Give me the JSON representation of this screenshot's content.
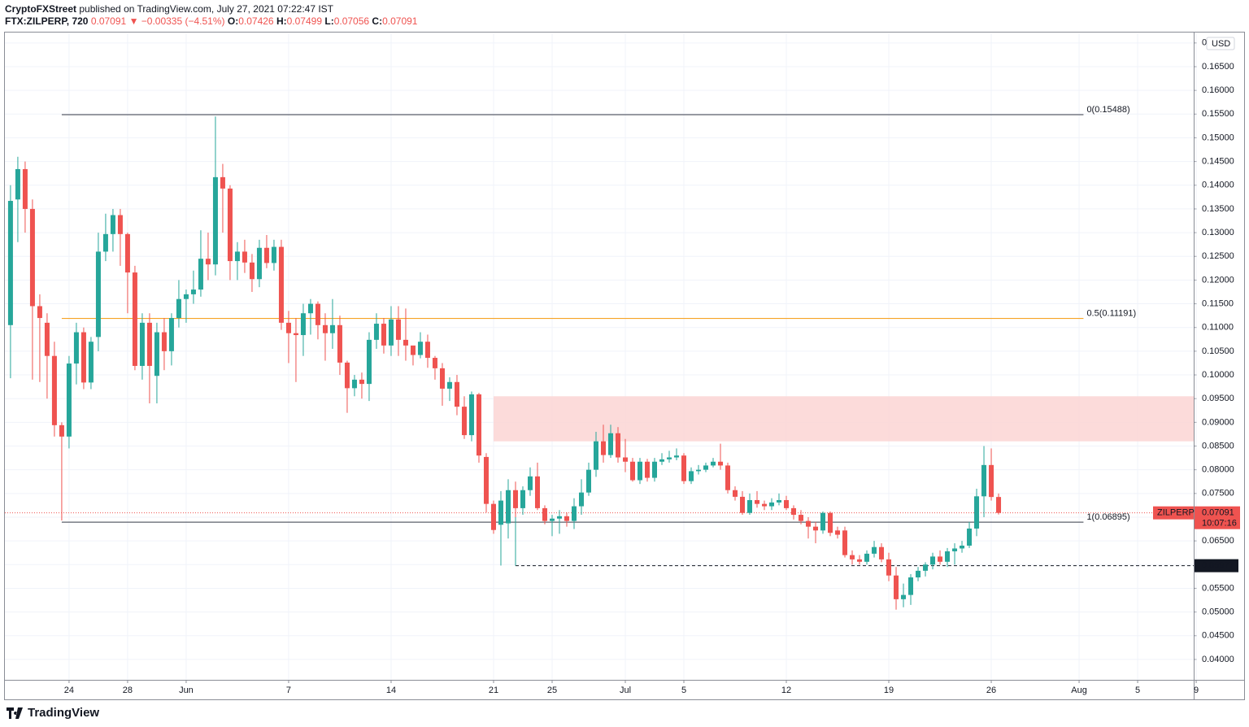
{
  "header": {
    "author": "CryptoFXStreet",
    "published": "published on TradingView.com, July 27, 2021 07:22:47 IST",
    "symbol": "FTX:ZILPERP, 720",
    "last": "0.07091",
    "change": "▼ −0.00335 (−4.51%)",
    "ohlc": [
      {
        "key": "O:",
        "value": "0.07426"
      },
      {
        "key": "H:",
        "value": "0.07499"
      },
      {
        "key": "L:",
        "value": "0.07056"
      },
      {
        "key": "C:",
        "value": "0.07091"
      }
    ]
  },
  "footer": {
    "brand": "TradingView"
  },
  "chart_data": {
    "type": "candlestick",
    "currency": "USD",
    "up_color": "#26a69a",
    "down_color": "#ef5350",
    "grid": true,
    "xlim": [
      19.56,
      100.83
    ],
    "ylim": [
      0.0357,
      0.1722
    ],
    "xticks": [
      {
        "value": 24,
        "label": "24"
      },
      {
        "value": 28,
        "label": "28"
      },
      {
        "value": 32,
        "label": "Jun"
      },
      {
        "value": 39,
        "label": "7"
      },
      {
        "value": 46,
        "label": "14"
      },
      {
        "value": 53,
        "label": "21"
      },
      {
        "value": 57,
        "label": "25"
      },
      {
        "value": 62,
        "label": "Jul"
      },
      {
        "value": 66,
        "label": "5"
      },
      {
        "value": 73,
        "label": "12"
      },
      {
        "value": 80,
        "label": "19"
      },
      {
        "value": 87,
        "label": "26"
      },
      {
        "value": 93,
        "label": "Aug"
      },
      {
        "value": 97,
        "label": "5"
      },
      {
        "value": 101,
        "label": "9"
      }
    ],
    "yticks": [
      {
        "value": 0.04,
        "label": "0.04000"
      },
      {
        "value": 0.045,
        "label": "0.04500"
      },
      {
        "value": 0.05,
        "label": "0.05000"
      },
      {
        "value": 0.055,
        "label": "0.05500"
      },
      {
        "value": 0.06,
        "label": "0.06000"
      },
      {
        "value": 0.065,
        "label": "0.06500"
      },
      {
        "value": 0.07,
        "label": "0.07000"
      },
      {
        "value": 0.075,
        "label": "0.07500"
      },
      {
        "value": 0.08,
        "label": "0.08000"
      },
      {
        "value": 0.085,
        "label": "0.08500"
      },
      {
        "value": 0.09,
        "label": "0.09000"
      },
      {
        "value": 0.095,
        "label": "0.09500"
      },
      {
        "value": 0.1,
        "label": "0.10000"
      },
      {
        "value": 0.105,
        "label": "0.10500"
      },
      {
        "value": 0.11,
        "label": "0.11000"
      },
      {
        "value": 0.115,
        "label": "0.11500"
      },
      {
        "value": 0.12,
        "label": "0.12000"
      },
      {
        "value": 0.125,
        "label": "0.12500"
      },
      {
        "value": 0.13,
        "label": "0.13000"
      },
      {
        "value": 0.135,
        "label": "0.13500"
      },
      {
        "value": 0.14,
        "label": "0.14000"
      },
      {
        "value": 0.145,
        "label": "0.14500"
      },
      {
        "value": 0.15,
        "label": "0.15000"
      },
      {
        "value": 0.155,
        "label": "0.15500"
      },
      {
        "value": 0.16,
        "label": "0.16000"
      },
      {
        "value": 0.165,
        "label": "0.16500"
      },
      {
        "value": 0.17,
        "label": "0.17000"
      }
    ],
    "x": [
      20,
      20.5,
      21,
      21.5,
      22,
      22.5,
      23,
      23.5,
      24,
      24.5,
      25,
      25.5,
      26,
      26.5,
      27,
      27.5,
      28,
      28.5,
      29,
      29.5,
      30,
      30.5,
      31,
      31.5,
      32,
      32.5,
      33,
      33.5,
      34,
      34.5,
      35,
      35.5,
      36,
      36.5,
      37,
      37.5,
      38,
      38.5,
      39,
      39.5,
      40,
      40.5,
      41,
      41.5,
      42,
      42.5,
      43,
      43.5,
      44,
      44.5,
      45,
      45.5,
      46,
      46.5,
      47,
      47.5,
      48,
      48.5,
      49,
      49.5,
      50,
      50.5,
      51,
      51.5,
      52,
      52.5,
      53,
      53.5,
      54,
      54.5,
      55,
      55.5,
      56,
      56.5,
      57,
      57.5,
      58,
      58.5,
      59,
      59.5,
      60,
      60.5,
      61,
      61.5,
      62,
      62.5,
      63,
      63.5,
      64,
      64.5,
      65,
      65.5,
      66,
      66.5,
      67,
      67.5,
      68,
      68.5,
      69,
      69.5,
      70,
      70.5,
      71,
      71.5,
      72,
      72.5,
      73,
      73.5,
      74,
      74.5,
      75,
      75.5,
      76,
      76.5,
      77,
      77.5,
      78,
      78.5,
      79,
      79.5,
      80,
      80.5,
      81,
      81.5,
      82,
      82.5,
      83,
      83.5,
      84,
      84.5,
      85,
      85.5,
      86,
      86.5,
      87,
      87.5
    ],
    "open": [
      0.1105,
      0.137,
      0.1434,
      0.135,
      0.1145,
      0.111,
      0.104,
      0.0894,
      0.087,
      0.1024,
      0.109,
      0.0984,
      0.108,
      0.126,
      0.1297,
      0.1337,
      0.1297,
      0.1216,
      0.1019,
      0.111,
      0.0998,
      0.109,
      0.105,
      0.112,
      0.116,
      0.117,
      0.118,
      0.1245,
      0.1233,
      0.1417,
      0.1393,
      0.124,
      0.126,
      0.1237,
      0.1202,
      0.1268,
      0.1236,
      0.127,
      0.111,
      0.1088,
      0.1084,
      0.113,
      0.115,
      0.1105,
      0.1088,
      0.1105,
      0.1026,
      0.0972,
      0.099,
      0.0981,
      0.1074,
      0.1108,
      0.1062,
      0.1117,
      0.1074,
      0.1062,
      0.1042,
      0.107,
      0.1036,
      0.1014,
      0.0971,
      0.0985,
      0.0933,
      0.0873,
      0.0959,
      0.0827,
      0.0728,
      0.0684,
      0.0687,
      0.0757,
      0.0719,
      0.0757,
      0.0786,
      0.0719,
      0.0692,
      0.0697,
      0.0702,
      0.0692,
      0.0723,
      0.0752,
      0.08,
      0.086,
      0.0831,
      0.0877,
      0.0826,
      0.0817,
      0.0778,
      0.0817,
      0.0783,
      0.0817,
      0.0822,
      0.0826,
      0.083,
      0.0776,
      0.0797,
      0.08,
      0.0809,
      0.0817,
      0.0809,
      0.0757,
      0.0743,
      0.0709,
      0.0736,
      0.0728,
      0.0723,
      0.0731,
      0.0736,
      0.0719,
      0.0705,
      0.0692,
      0.068,
      0.0672,
      0.0709,
      0.0672,
      0.0672,
      0.062,
      0.0611,
      0.0606,
      0.0623,
      0.0637,
      0.0611,
      0.0577,
      0.0527,
      0.0536,
      0.0573,
      0.0587,
      0.06,
      0.0617,
      0.0606,
      0.0628,
      0.0634,
      0.064,
      0.0676,
      0.0744,
      0.081,
      0.07426
    ],
    "high": [
      0.14,
      0.146,
      0.145,
      0.137,
      0.117,
      0.113,
      0.107,
      0.09,
      0.104,
      0.111,
      0.11,
      0.108,
      0.13,
      0.134,
      0.135,
      0.135,
      0.13,
      0.123,
      0.113,
      0.113,
      0.111,
      0.112,
      0.113,
      0.12,
      0.118,
      0.122,
      0.1305,
      0.13,
      0.1545,
      0.1445,
      0.14,
      0.128,
      0.1285,
      0.1255,
      0.1285,
      0.1295,
      0.1285,
      0.1285,
      0.1135,
      0.112,
      0.115,
      0.116,
      0.1155,
      0.113,
      0.116,
      0.1125,
      0.103,
      0.1,
      0.1005,
      0.109,
      0.113,
      0.112,
      0.1145,
      0.1145,
      0.114,
      0.106,
      0.109,
      0.1085,
      0.104,
      0.1025,
      0.0995,
      0.1,
      0.0955,
      0.0965,
      0.0962,
      0.0835,
      0.0735,
      0.0755,
      0.078,
      0.0775,
      0.0765,
      0.0805,
      0.0815,
      0.0725,
      0.0705,
      0.0715,
      0.071,
      0.074,
      0.078,
      0.0815,
      0.088,
      0.0895,
      0.0895,
      0.089,
      0.0865,
      0.0825,
      0.0825,
      0.0823,
      0.0825,
      0.0835,
      0.084,
      0.0845,
      0.0835,
      0.0805,
      0.081,
      0.0815,
      0.0825,
      0.0855,
      0.0815,
      0.0765,
      0.0755,
      0.075,
      0.0755,
      0.0735,
      0.074,
      0.075,
      0.0745,
      0.0725,
      0.0715,
      0.07,
      0.069,
      0.0712,
      0.0712,
      0.068,
      0.068,
      0.063,
      0.062,
      0.063,
      0.065,
      0.0645,
      0.0625,
      0.0595,
      0.056,
      0.058,
      0.0595,
      0.0605,
      0.0625,
      0.063,
      0.0635,
      0.0645,
      0.065,
      0.069,
      0.076,
      0.085,
      0.0845,
      0.07499
    ],
    "low": [
      0.0993,
      0.128,
      0.13,
      0.099,
      0.0985,
      0.095,
      0.087,
      0.0693,
      0.0845,
      0.098,
      0.097,
      0.097,
      0.105,
      0.124,
      0.126,
      0.123,
      0.113,
      0.101,
      0.099,
      0.094,
      0.094,
      0.101,
      0.102,
      0.11,
      0.111,
      0.115,
      0.1165,
      0.12,
      0.121,
      0.13,
      0.12,
      0.12,
      0.1215,
      0.1175,
      0.1185,
      0.1225,
      0.122,
      0.1095,
      0.1025,
      0.0985,
      0.104,
      0.1085,
      0.1075,
      0.103,
      0.1055,
      0.1,
      0.092,
      0.0955,
      0.095,
      0.0945,
      0.1055,
      0.1045,
      0.104,
      0.104,
      0.103,
      0.102,
      0.1035,
      0.1015,
      0.099,
      0.0935,
      0.0945,
      0.0915,
      0.0865,
      0.086,
      0.0815,
      0.071,
      0.0665,
      0.0598,
      0.0655,
      0.07,
      0.0705,
      0.0745,
      0.0715,
      0.0685,
      0.066,
      0.0665,
      0.068,
      0.0675,
      0.0705,
      0.0745,
      0.0785,
      0.0815,
      0.0825,
      0.0815,
      0.0795,
      0.0775,
      0.077,
      0.0775,
      0.0775,
      0.081,
      0.0815,
      0.082,
      0.077,
      0.077,
      0.079,
      0.0795,
      0.0805,
      0.08,
      0.075,
      0.0735,
      0.0705,
      0.0705,
      0.072,
      0.0715,
      0.0715,
      0.0725,
      0.0715,
      0.0695,
      0.0685,
      0.0655,
      0.0645,
      0.0665,
      0.066,
      0.0655,
      0.0615,
      0.06,
      0.06,
      0.06,
      0.0615,
      0.0605,
      0.0565,
      0.0505,
      0.051,
      0.0515,
      0.0565,
      0.0575,
      0.059,
      0.06,
      0.0595,
      0.06,
      0.0625,
      0.0635,
      0.066,
      0.07,
      0.0735,
      0.07056
    ],
    "close": [
      0.1367,
      0.1434,
      0.135,
      0.1145,
      0.112,
      0.104,
      0.0894,
      0.087,
      0.1024,
      0.109,
      0.0984,
      0.107,
      0.126,
      0.1297,
      0.1337,
      0.1297,
      0.1216,
      0.1019,
      0.111,
      0.1019,
      0.109,
      0.105,
      0.112,
      0.116,
      0.117,
      0.118,
      0.1245,
      0.1233,
      0.1417,
      0.1393,
      0.124,
      0.126,
      0.1237,
      0.1202,
      0.1268,
      0.1236,
      0.127,
      0.111,
      0.1088,
      0.1084,
      0.113,
      0.115,
      0.1105,
      0.1088,
      0.1105,
      0.1026,
      0.0972,
      0.099,
      0.0981,
      0.1074,
      0.1108,
      0.1062,
      0.1117,
      0.1074,
      0.1062,
      0.1042,
      0.107,
      0.1036,
      0.1014,
      0.0971,
      0.0985,
      0.0933,
      0.0873,
      0.0959,
      0.083,
      0.0728,
      0.0673,
      0.0735,
      0.0757,
      0.0719,
      0.0757,
      0.0786,
      0.0719,
      0.0692,
      0.0697,
      0.0702,
      0.0692,
      0.0723,
      0.0752,
      0.08,
      0.086,
      0.0831,
      0.0877,
      0.0826,
      0.0817,
      0.0778,
      0.0817,
      0.0783,
      0.0817,
      0.0822,
      0.0826,
      0.083,
      0.0776,
      0.0797,
      0.08,
      0.0809,
      0.0817,
      0.0809,
      0.0757,
      0.0743,
      0.0709,
      0.0736,
      0.0728,
      0.0723,
      0.0731,
      0.0736,
      0.0719,
      0.0705,
      0.0692,
      0.068,
      0.0672,
      0.0709,
      0.0667,
      0.0663,
      0.062,
      0.0611,
      0.0606,
      0.0623,
      0.0637,
      0.0611,
      0.0577,
      0.0527,
      0.0536,
      0.0573,
      0.0587,
      0.06,
      0.0617,
      0.0606,
      0.0628,
      0.0634,
      0.064,
      0.0676,
      0.0744,
      0.081,
      0.07426,
      0.07091
    ],
    "levels": [
      {
        "text": "0(0.15488)",
        "value": 0.15488,
        "start": 23.5,
        "end": 93.3,
        "color": "#5d606b"
      },
      {
        "text": "0.5(0.11191)",
        "value": 0.11191,
        "start": 23.5,
        "end": 93.3,
        "color": "#f7a325"
      },
      {
        "text": "1(0.06895)",
        "value": 0.06895,
        "start": 23.5,
        "end": 93.3,
        "color": "#5d606b"
      }
    ],
    "zone": {
      "from": 0.086,
      "to": 0.0955,
      "start": 53,
      "color": "#fcd5d3"
    },
    "support": {
      "value": 0.05977,
      "start": 54.5
    },
    "last": {
      "symbol": "ZILPERP",
      "value": 0.07091,
      "countdown": "10:07:16",
      "color": "#ef5350"
    }
  }
}
